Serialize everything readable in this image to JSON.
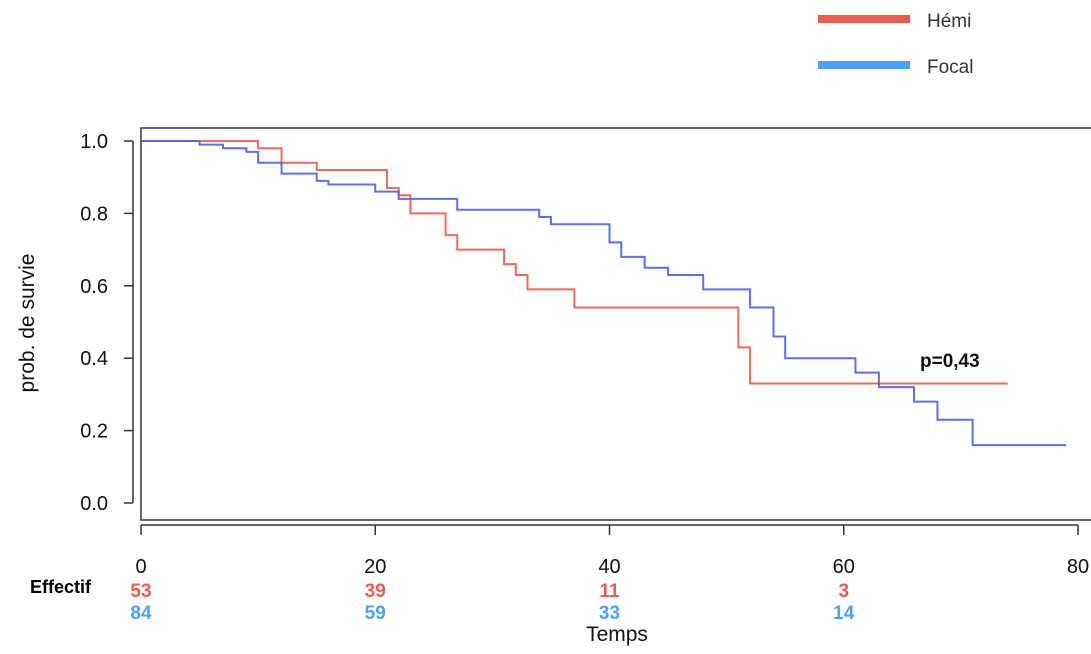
{
  "chart_data": {
    "type": "line",
    "subtype": "kaplan-meier-step",
    "xlabel": "Temps",
    "ylabel": "prob. de survie",
    "xlim": [
      0,
      80
    ],
    "ylim": [
      0,
      1
    ],
    "x_ticks": [
      "0",
      "20",
      "40",
      "60",
      "80"
    ],
    "y_ticks": [
      "0.0",
      "0.2",
      "0.4",
      "0.6",
      "0.8",
      "1.0"
    ],
    "grid": false,
    "legend_position": "top-right",
    "annotation": "p=0,43",
    "series": [
      {
        "name": "Hémi",
        "color": "#ee5a4e",
        "points": [
          [
            0,
            1.0
          ],
          [
            10,
            0.98
          ],
          [
            12,
            0.94
          ],
          [
            15,
            0.92
          ],
          [
            21,
            0.87
          ],
          [
            22,
            0.85
          ],
          [
            23,
            0.8
          ],
          [
            26,
            0.74
          ],
          [
            27,
            0.7
          ],
          [
            31,
            0.66
          ],
          [
            32,
            0.63
          ],
          [
            33,
            0.59
          ],
          [
            37,
            0.54
          ],
          [
            51,
            0.43
          ],
          [
            52,
            0.33
          ],
          [
            74,
            0.33
          ]
        ]
      },
      {
        "name": "Focal",
        "color": "#4f5ef0",
        "points": [
          [
            0,
            1.0
          ],
          [
            5,
            0.99
          ],
          [
            7,
            0.98
          ],
          [
            9,
            0.97
          ],
          [
            10,
            0.94
          ],
          [
            12,
            0.91
          ],
          [
            15,
            0.89
          ],
          [
            16,
            0.88
          ],
          [
            20,
            0.86
          ],
          [
            22,
            0.84
          ],
          [
            27,
            0.81
          ],
          [
            34,
            0.79
          ],
          [
            35,
            0.77
          ],
          [
            40,
            0.72
          ],
          [
            41,
            0.68
          ],
          [
            43,
            0.65
          ],
          [
            45,
            0.63
          ],
          [
            48,
            0.59
          ],
          [
            50,
            0.59
          ],
          [
            52,
            0.54
          ],
          [
            54,
            0.46
          ],
          [
            55,
            0.4
          ],
          [
            61,
            0.36
          ],
          [
            63,
            0.32
          ],
          [
            66,
            0.28
          ],
          [
            68,
            0.23
          ],
          [
            71,
            0.16
          ],
          [
            79,
            0.16
          ]
        ]
      }
    ],
    "risk_table": {
      "title": "Effectif",
      "times": [
        0,
        20,
        40,
        60
      ],
      "rows": [
        {
          "name": "Hémi",
          "color": "#ee5a4e",
          "values": [
            "53",
            "39",
            "11",
            "3"
          ]
        },
        {
          "name": "Focal",
          "color": "#4aa3f2",
          "values": [
            "84",
            "59",
            "33",
            "14"
          ]
        }
      ]
    }
  },
  "legend": {
    "items": [
      {
        "label": "Hémi",
        "color": "#ee5a4e"
      },
      {
        "label": "Focal",
        "color": "#4aa3f2"
      }
    ]
  }
}
